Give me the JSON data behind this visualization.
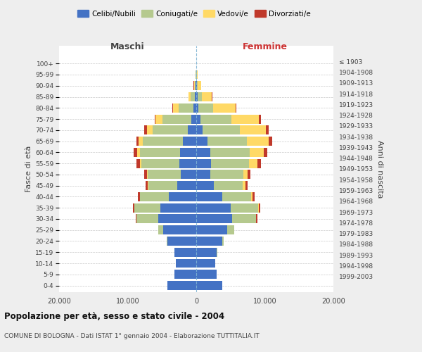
{
  "age_groups": [
    "0-4",
    "5-9",
    "10-14",
    "15-19",
    "20-24",
    "25-29",
    "30-34",
    "35-39",
    "40-44",
    "45-49",
    "50-54",
    "55-59",
    "60-64",
    "65-69",
    "70-74",
    "75-79",
    "80-84",
    "85-89",
    "90-94",
    "95-99",
    "100+"
  ],
  "birth_years": [
    "1999-2003",
    "1994-1998",
    "1989-1993",
    "1984-1988",
    "1979-1983",
    "1974-1978",
    "1969-1973",
    "1964-1968",
    "1959-1963",
    "1954-1958",
    "1949-1953",
    "1944-1948",
    "1939-1943",
    "1934-1938",
    "1929-1933",
    "1924-1928",
    "1919-1923",
    "1914-1918",
    "1909-1913",
    "1904-1908",
    "≤ 1903"
  ],
  "colors": {
    "celibi": "#4472C4",
    "coniugati": "#b5c98e",
    "vedovi": "#FFD966",
    "divorziati": "#C0392B"
  },
  "maschi_celibi": [
    4200,
    3200,
    3000,
    3200,
    4200,
    4800,
    5500,
    5200,
    4000,
    2800,
    2300,
    2500,
    2400,
    2000,
    1200,
    700,
    400,
    200,
    100,
    50,
    20
  ],
  "maschi_coniugati": [
    5,
    5,
    10,
    20,
    100,
    700,
    3200,
    3800,
    4200,
    4200,
    4800,
    5500,
    5800,
    5800,
    5200,
    4200,
    2200,
    600,
    150,
    30,
    10
  ],
  "maschi_vedovi": [
    2,
    2,
    2,
    2,
    5,
    5,
    15,
    30,
    50,
    80,
    100,
    200,
    400,
    600,
    800,
    1000,
    800,
    350,
    100,
    20,
    5
  ],
  "maschi_divorziati": [
    2,
    2,
    2,
    5,
    10,
    20,
    100,
    200,
    250,
    350,
    400,
    500,
    500,
    350,
    350,
    200,
    80,
    20,
    10,
    5,
    2
  ],
  "femmine_celibi": [
    3800,
    3000,
    2800,
    3000,
    3800,
    4500,
    5200,
    5000,
    3800,
    2600,
    2100,
    2200,
    2000,
    1600,
    900,
    600,
    300,
    200,
    100,
    50,
    20
  ],
  "femmine_coniugati": [
    5,
    8,
    15,
    30,
    200,
    1000,
    3500,
    4000,
    4200,
    4200,
    4800,
    5500,
    5800,
    5800,
    5500,
    4500,
    2200,
    600,
    150,
    30,
    10
  ],
  "femmine_vedovi": [
    2,
    2,
    2,
    5,
    10,
    15,
    50,
    120,
    200,
    350,
    600,
    1200,
    2000,
    3200,
    3800,
    4000,
    3200,
    1500,
    500,
    100,
    10
  ],
  "femmine_divorziati": [
    2,
    2,
    2,
    5,
    15,
    30,
    150,
    220,
    280,
    350,
    400,
    500,
    600,
    500,
    400,
    350,
    150,
    50,
    10,
    5,
    2
  ],
  "xlim": 20000,
  "title": "Popolazione per età, sesso e stato civile - 2004",
  "subtitle": "COMUNE DI BOLOGNA - Dati ISTAT 1° gennaio 2004 - Elaborazione TUTTITALIA.IT",
  "ylabel_left": "Fasce di età",
  "ylabel_right": "Anni di nascita",
  "maschi_label": "Maschi",
  "femmine_label": "Femmine",
  "legend_labels": [
    "Celibi/Nubili",
    "Coniugati/e",
    "Vedovi/e",
    "Divorziati/e"
  ],
  "bg_color": "#eeeeee",
  "plot_bg": "#ffffff"
}
